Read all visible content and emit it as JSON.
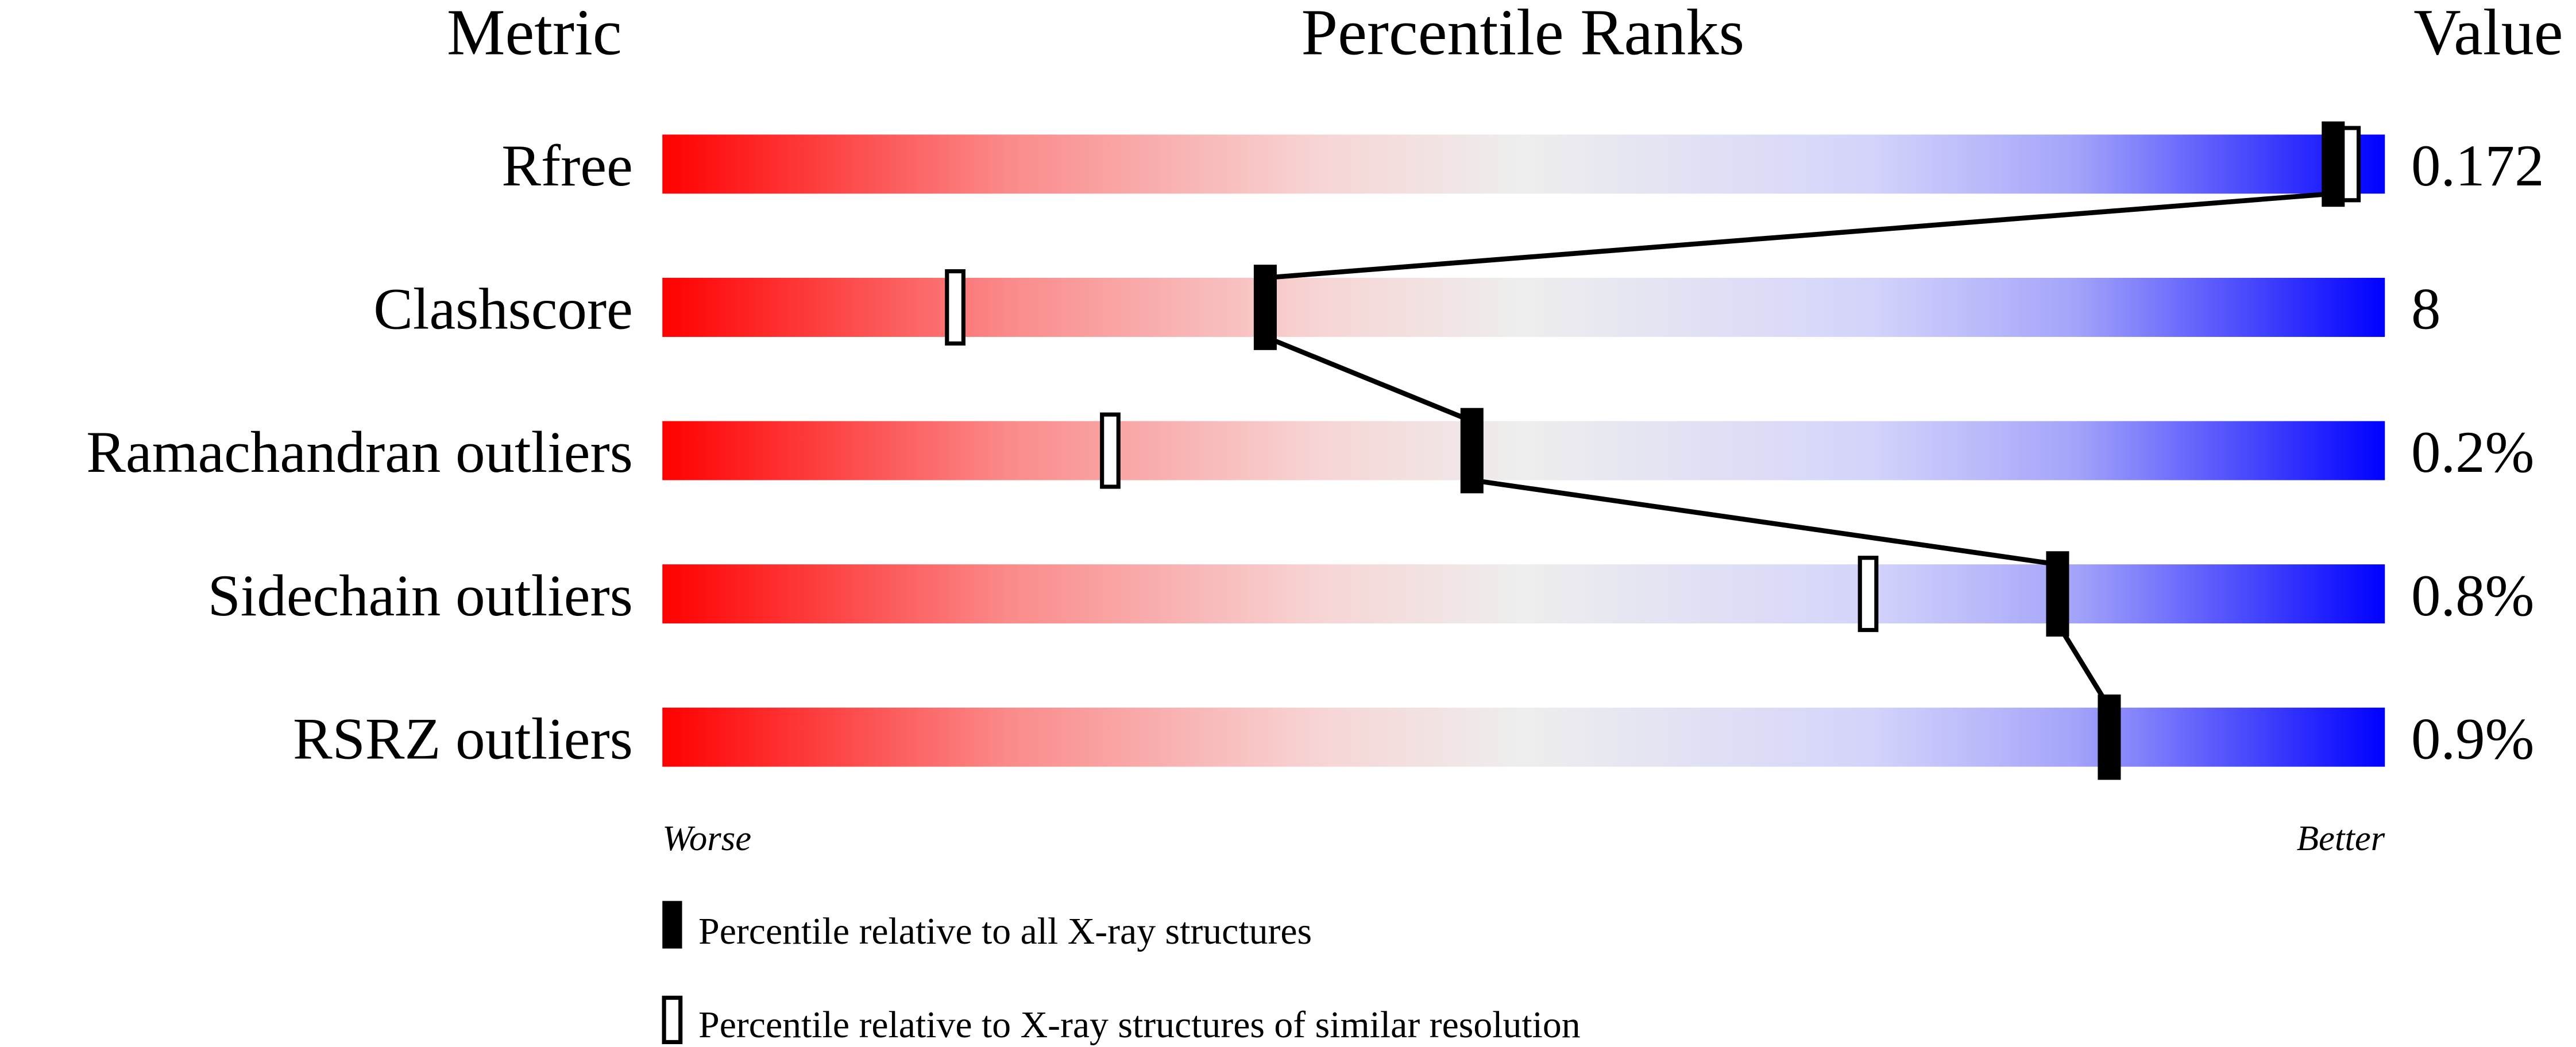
{
  "chart_data": {
    "type": "bar",
    "headers": {
      "metric": "Metric",
      "percentile": "Percentile Ranks",
      "value": "Value"
    },
    "xlim": [
      0,
      100
    ],
    "axis_labels": {
      "left": "Worse",
      "right": "Better"
    },
    "rows": [
      {
        "metric": "Rfree",
        "value": "0.172",
        "percentile_all": 97,
        "percentile_similar": 98
      },
      {
        "metric": "Clashscore",
        "value": "8",
        "percentile_all": 35,
        "percentile_similar": 17
      },
      {
        "metric": "Ramachandran outliers",
        "value": "0.2%",
        "percentile_all": 47,
        "percentile_similar": 26
      },
      {
        "metric": "Sidechain outliers",
        "value": "0.8%",
        "percentile_all": 81,
        "percentile_similar": 70
      },
      {
        "metric": "RSRZ outliers",
        "value": "0.9%",
        "percentile_all": 84,
        "percentile_similar": null
      }
    ],
    "legend": [
      {
        "marker": "filled",
        "label": "Percentile relative to all X-ray structures"
      },
      {
        "marker": "open",
        "label": "Percentile relative to X-ray structures of similar resolution"
      }
    ],
    "colors": {
      "worse": "#ff0000",
      "middle": "#eeeeee",
      "better": "#0000ff",
      "marker": "#000000"
    }
  }
}
